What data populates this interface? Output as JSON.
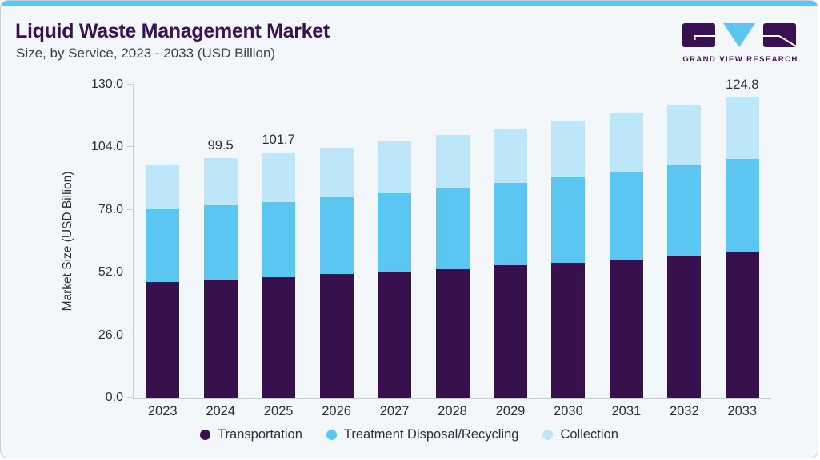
{
  "header": {
    "title": "Liquid Waste Management Market",
    "subtitle": "Size, by Service, 2023 - 2033 (USD Billion)"
  },
  "logo": {
    "text": "GRAND VIEW RESEARCH",
    "mark_colors": {
      "purple": "#3a1053",
      "blue": "#5bc6f2"
    }
  },
  "colors": {
    "accent_bar": "#5bc6f2",
    "card_background": "#f3f7fa",
    "axis_line": "#c6ccd4",
    "text_dark": "#2b2c3e",
    "title_purple": "#3a1053"
  },
  "chart_data": {
    "type": "bar",
    "stacked": true,
    "title": "Liquid Waste Management Market Size, by Service, 2023 - 2033 (USD Billion)",
    "xlabel": "",
    "ylabel": "Market Size (USD Billion)",
    "ylim": [
      0,
      130
    ],
    "yticks": [
      0,
      26,
      52,
      78,
      104,
      130
    ],
    "grid": false,
    "legend_position": "bottom",
    "categories": [
      "2023",
      "2024",
      "2025",
      "2026",
      "2027",
      "2028",
      "2029",
      "2030",
      "2031",
      "2032",
      "2033"
    ],
    "series": [
      {
        "name": "Transportation",
        "color": "#36114d",
        "values": [
          48.0,
          49.0,
          50.1,
          51.5,
          52.3,
          53.4,
          54.9,
          56.0,
          57.3,
          59.0,
          60.6
        ]
      },
      {
        "name": "Treatment Disposal/Recycling",
        "color": "#5bc6f2",
        "values": [
          30.2,
          30.9,
          31.3,
          31.9,
          32.5,
          33.7,
          34.4,
          35.6,
          36.6,
          37.6,
          38.6
        ]
      },
      {
        "name": "Collection",
        "color": "#bde6f8",
        "values": [
          18.8,
          19.6,
          20.3,
          20.4,
          21.5,
          22.1,
          22.6,
          23.2,
          24.3,
          24.7,
          25.6
        ]
      }
    ],
    "totals": [
      97.0,
      99.5,
      101.7,
      103.8,
      106.3,
      109.2,
      111.9,
      114.8,
      118.2,
      121.3,
      124.8
    ],
    "bar_labels": [
      null,
      "99.5",
      "101.7",
      null,
      null,
      null,
      null,
      null,
      null,
      null,
      "124.8"
    ]
  }
}
